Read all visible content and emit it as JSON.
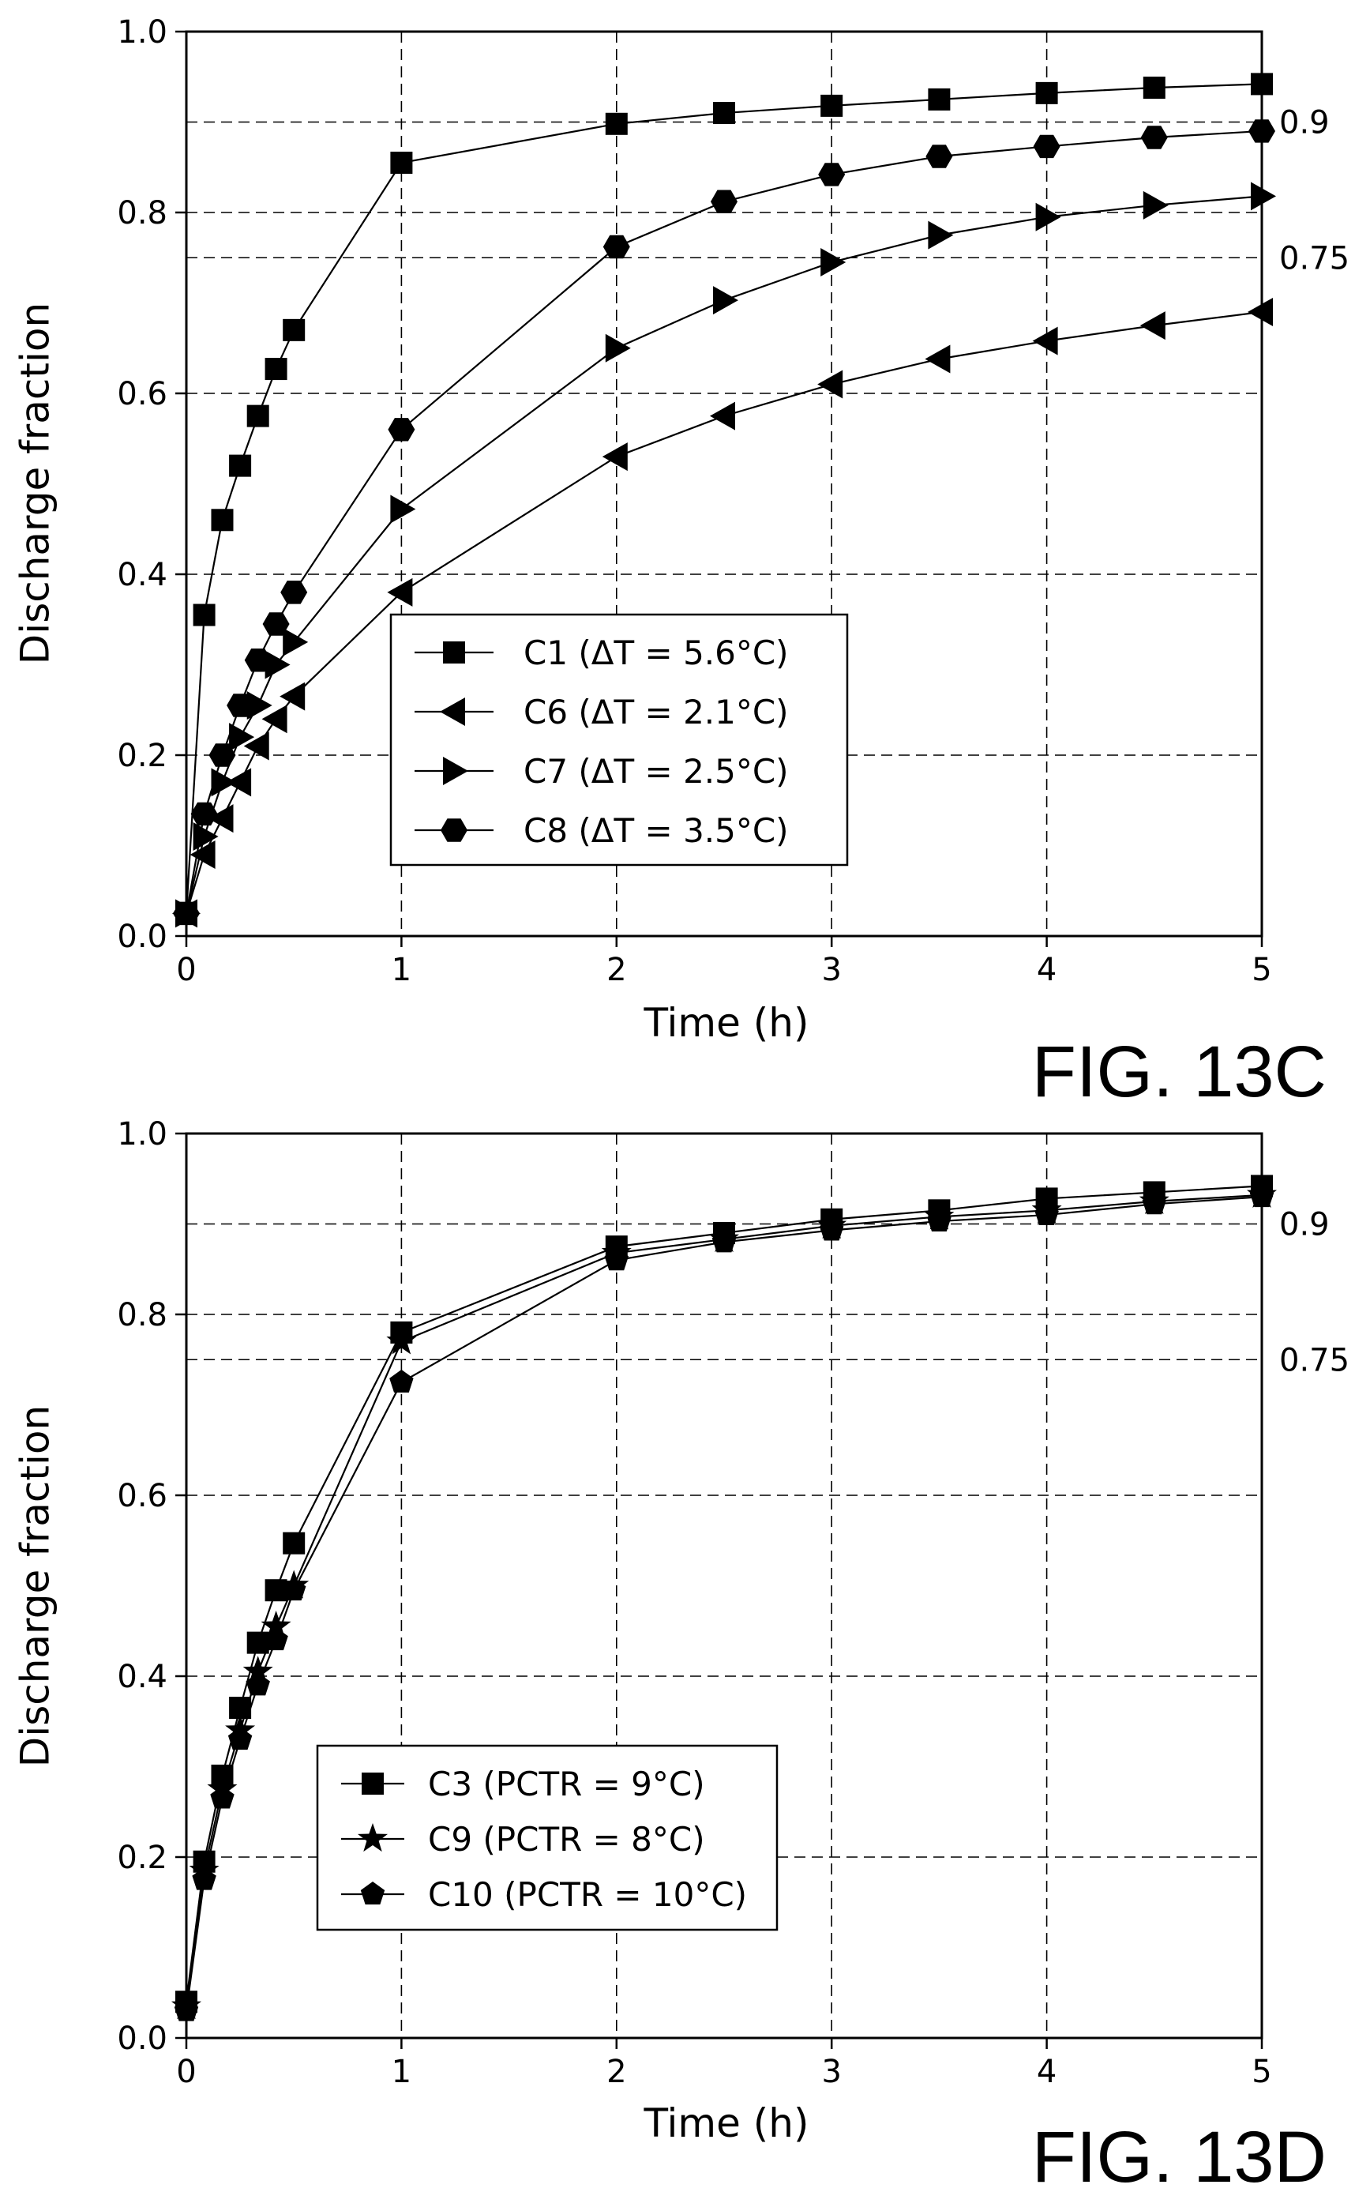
{
  "chart_data": [
    {
      "type": "line",
      "figure_label": "FIG. 13C",
      "xlabel": "Time (h)",
      "ylabel": "Discharge fraction",
      "xlim": [
        0,
        5
      ],
      "ylim": [
        0,
        1
      ],
      "x_ticks": [
        "0",
        "1",
        "2",
        "3",
        "4",
        "5"
      ],
      "y_ticks": [
        "0.0",
        "0.2",
        "0.4",
        "0.6",
        "0.8",
        "1.0"
      ],
      "grid": true,
      "legend_position": "center",
      "reference_lines": [
        {
          "y": 0.9,
          "label": "0.9"
        },
        {
          "y": 0.75,
          "label": "0.75"
        }
      ],
      "series": [
        {
          "name": "C1 (ΔT = 5.6°C)",
          "marker": "square",
          "x": [
            0,
            0.083,
            0.167,
            0.25,
            0.333,
            0.417,
            0.5,
            1,
            2,
            2.5,
            3,
            3.5,
            4,
            4.5,
            5
          ],
          "y": [
            0.025,
            0.355,
            0.46,
            0.52,
            0.575,
            0.627,
            0.67,
            0.855,
            0.898,
            0.91,
            0.918,
            0.925,
            0.932,
            0.938,
            0.942
          ]
        },
        {
          "name": "C6 (ΔT = 2.1°C)",
          "marker": "triangle-left",
          "x": [
            0,
            0.083,
            0.167,
            0.25,
            0.333,
            0.417,
            0.5,
            1,
            2,
            2.5,
            3,
            3.5,
            4,
            4.5,
            5
          ],
          "y": [
            0.025,
            0.09,
            0.13,
            0.17,
            0.21,
            0.24,
            0.265,
            0.38,
            0.53,
            0.575,
            0.61,
            0.638,
            0.658,
            0.675,
            0.69
          ]
        },
        {
          "name": "C7 (ΔT = 2.5°C)",
          "marker": "triangle-right",
          "x": [
            0,
            0.083,
            0.167,
            0.25,
            0.333,
            0.417,
            0.5,
            1,
            2,
            2.5,
            3,
            3.5,
            4,
            4.5,
            5
          ],
          "y": [
            0.025,
            0.11,
            0.17,
            0.22,
            0.255,
            0.3,
            0.325,
            0.472,
            0.65,
            0.703,
            0.745,
            0.775,
            0.795,
            0.808,
            0.818
          ]
        },
        {
          "name": "C8 (ΔT = 3.5°C)",
          "marker": "hexagon",
          "x": [
            0,
            0.083,
            0.167,
            0.25,
            0.333,
            0.417,
            0.5,
            1,
            2,
            2.5,
            3,
            3.5,
            4,
            4.5,
            5
          ],
          "y": [
            0.025,
            0.135,
            0.2,
            0.255,
            0.305,
            0.345,
            0.38,
            0.56,
            0.762,
            0.812,
            0.842,
            0.862,
            0.873,
            0.883,
            0.89
          ]
        }
      ]
    },
    {
      "type": "line",
      "figure_label": "FIG. 13D",
      "xlabel": "Time (h)",
      "ylabel": "Discharge fraction",
      "xlim": [
        0,
        5
      ],
      "ylim": [
        0,
        1
      ],
      "x_ticks": [
        "0",
        "1",
        "2",
        "3",
        "4",
        "5"
      ],
      "y_ticks": [
        "0.0",
        "0.2",
        "0.4",
        "0.6",
        "0.8",
        "1.0"
      ],
      "grid": true,
      "legend_position": "lower-left",
      "reference_lines": [
        {
          "y": 0.9,
          "label": "0.9"
        },
        {
          "y": 0.75,
          "label": "0.75"
        }
      ],
      "series": [
        {
          "name": "C3 (PCTR = 9°C)",
          "marker": "square",
          "x": [
            0,
            0.083,
            0.167,
            0.25,
            0.333,
            0.417,
            0.5,
            1,
            2,
            2.5,
            3,
            3.5,
            4,
            4.5,
            5
          ],
          "y": [
            0.04,
            0.195,
            0.29,
            0.365,
            0.437,
            0.495,
            0.547,
            0.78,
            0.875,
            0.89,
            0.905,
            0.915,
            0.928,
            0.935,
            0.942
          ]
        },
        {
          "name": "C9 (PCTR = 8°C)",
          "marker": "star",
          "x": [
            0,
            0.083,
            0.167,
            0.25,
            0.333,
            0.417,
            0.5,
            1,
            2,
            2.5,
            3,
            3.5,
            4,
            4.5,
            5
          ],
          "y": [
            0.035,
            0.185,
            0.275,
            0.34,
            0.405,
            0.455,
            0.5,
            0.77,
            0.868,
            0.883,
            0.898,
            0.908,
            0.915,
            0.925,
            0.932
          ]
        },
        {
          "name": "C10 (PCTR = 10°C)",
          "marker": "pentagon",
          "x": [
            0,
            0.083,
            0.167,
            0.25,
            0.333,
            0.417,
            0.5,
            1,
            2,
            2.5,
            3,
            3.5,
            4,
            4.5,
            5
          ],
          "y": [
            0.03,
            0.175,
            0.265,
            0.33,
            0.39,
            0.44,
            0.495,
            0.725,
            0.86,
            0.88,
            0.893,
            0.903,
            0.91,
            0.922,
            0.93
          ]
        }
      ]
    }
  ]
}
